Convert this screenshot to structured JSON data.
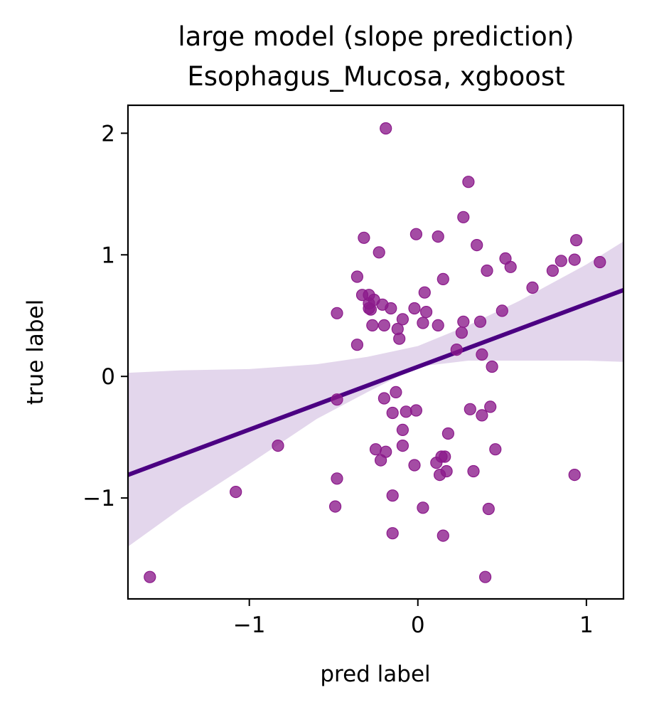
{
  "chart_data": {
    "type": "scatter",
    "title": "large model (slope prediction)",
    "subtitle": "Esophagus_Mucosa, xgboost",
    "xlabel": "pred label",
    "ylabel": "true label",
    "xlim": [
      -1.72,
      1.22
    ],
    "ylim": [
      -1.83,
      2.23
    ],
    "xticks": [
      -1,
      0,
      1
    ],
    "yticks": [
      -1,
      0,
      1,
      2
    ],
    "xtick_labels": [
      "−1",
      "0",
      "1"
    ],
    "ytick_labels": [
      "−1",
      "0",
      "1",
      "2"
    ],
    "grid": false,
    "colors": {
      "points": "#8b1a8b",
      "fit_line": "#4b0082",
      "confidence_band": "#d9c8e6"
    },
    "fit_line": {
      "x": [
        -1.72,
        1.22
      ],
      "y": [
        -0.81,
        0.71
      ]
    },
    "confidence_band": {
      "x": [
        -1.72,
        -1.4,
        -1.0,
        -0.6,
        -0.3,
        0.0,
        0.3,
        0.6,
        1.0,
        1.22
      ],
      "upper": [
        0.03,
        0.05,
        0.06,
        0.1,
        0.16,
        0.25,
        0.42,
        0.62,
        0.92,
        1.11
      ],
      "lower": [
        -1.4,
        -1.08,
        -0.72,
        -0.35,
        -0.13,
        0.08,
        0.13,
        0.13,
        0.13,
        0.12
      ]
    },
    "points": [
      [
        -1.59,
        -1.65
      ],
      [
        -1.08,
        -0.95
      ],
      [
        -0.83,
        -0.57
      ],
      [
        -0.48,
        0.52
      ],
      [
        -0.48,
        -0.19
      ],
      [
        -0.48,
        -0.84
      ],
      [
        -0.49,
        -1.07
      ],
      [
        -0.36,
        0.82
      ],
      [
        -0.36,
        0.26
      ],
      [
        -0.33,
        0.67
      ],
      [
        -0.32,
        1.14
      ],
      [
        -0.29,
        0.67
      ],
      [
        -0.29,
        0.6
      ],
      [
        -0.29,
        0.56
      ],
      [
        -0.28,
        0.55
      ],
      [
        -0.27,
        0.42
      ],
      [
        -0.26,
        0.63
      ],
      [
        -0.25,
        -0.6
      ],
      [
        -0.23,
        1.02
      ],
      [
        -0.22,
        -0.69
      ],
      [
        -0.21,
        0.59
      ],
      [
        -0.2,
        0.42
      ],
      [
        -0.2,
        -0.18
      ],
      [
        -0.19,
        -0.62
      ],
      [
        -0.19,
        2.04
      ],
      [
        -0.16,
        0.56
      ],
      [
        -0.15,
        -0.3
      ],
      [
        -0.15,
        -0.98
      ],
      [
        -0.15,
        -1.29
      ],
      [
        -0.13,
        -0.13
      ],
      [
        -0.12,
        0.39
      ],
      [
        -0.11,
        0.31
      ],
      [
        -0.09,
        0.47
      ],
      [
        -0.09,
        -0.44
      ],
      [
        -0.09,
        -0.57
      ],
      [
        -0.07,
        -0.29
      ],
      [
        -0.02,
        0.56
      ],
      [
        -0.02,
        -0.73
      ],
      [
        -0.01,
        1.17
      ],
      [
        -0.01,
        -0.28
      ],
      [
        0.03,
        0.44
      ],
      [
        0.04,
        0.69
      ],
      [
        0.05,
        0.53
      ],
      [
        0.03,
        -1.08
      ],
      [
        0.11,
        -0.71
      ],
      [
        0.12,
        0.42
      ],
      [
        0.12,
        1.15
      ],
      [
        0.13,
        -0.81
      ],
      [
        0.14,
        -0.66
      ],
      [
        0.15,
        0.8
      ],
      [
        0.15,
        -1.31
      ],
      [
        0.16,
        -0.66
      ],
      [
        0.17,
        -0.78
      ],
      [
        0.18,
        -0.47
      ],
      [
        0.23,
        0.22
      ],
      [
        0.26,
        0.36
      ],
      [
        0.27,
        1.31
      ],
      [
        0.27,
        0.45
      ],
      [
        0.3,
        1.6
      ],
      [
        0.31,
        -0.27
      ],
      [
        0.33,
        -0.78
      ],
      [
        0.35,
        1.08
      ],
      [
        0.37,
        0.45
      ],
      [
        0.38,
        0.18
      ],
      [
        0.38,
        -0.32
      ],
      [
        0.4,
        -1.65
      ],
      [
        0.41,
        0.87
      ],
      [
        0.42,
        -1.09
      ],
      [
        0.43,
        -0.25
      ],
      [
        0.44,
        0.08
      ],
      [
        0.46,
        -0.6
      ],
      [
        0.5,
        0.54
      ],
      [
        0.52,
        0.97
      ],
      [
        0.55,
        0.9
      ],
      [
        0.68,
        0.73
      ],
      [
        0.8,
        0.87
      ],
      [
        0.85,
        0.95
      ],
      [
        0.93,
        0.96
      ],
      [
        0.94,
        1.12
      ],
      [
        0.93,
        -0.81
      ],
      [
        1.08,
        0.94
      ]
    ]
  }
}
